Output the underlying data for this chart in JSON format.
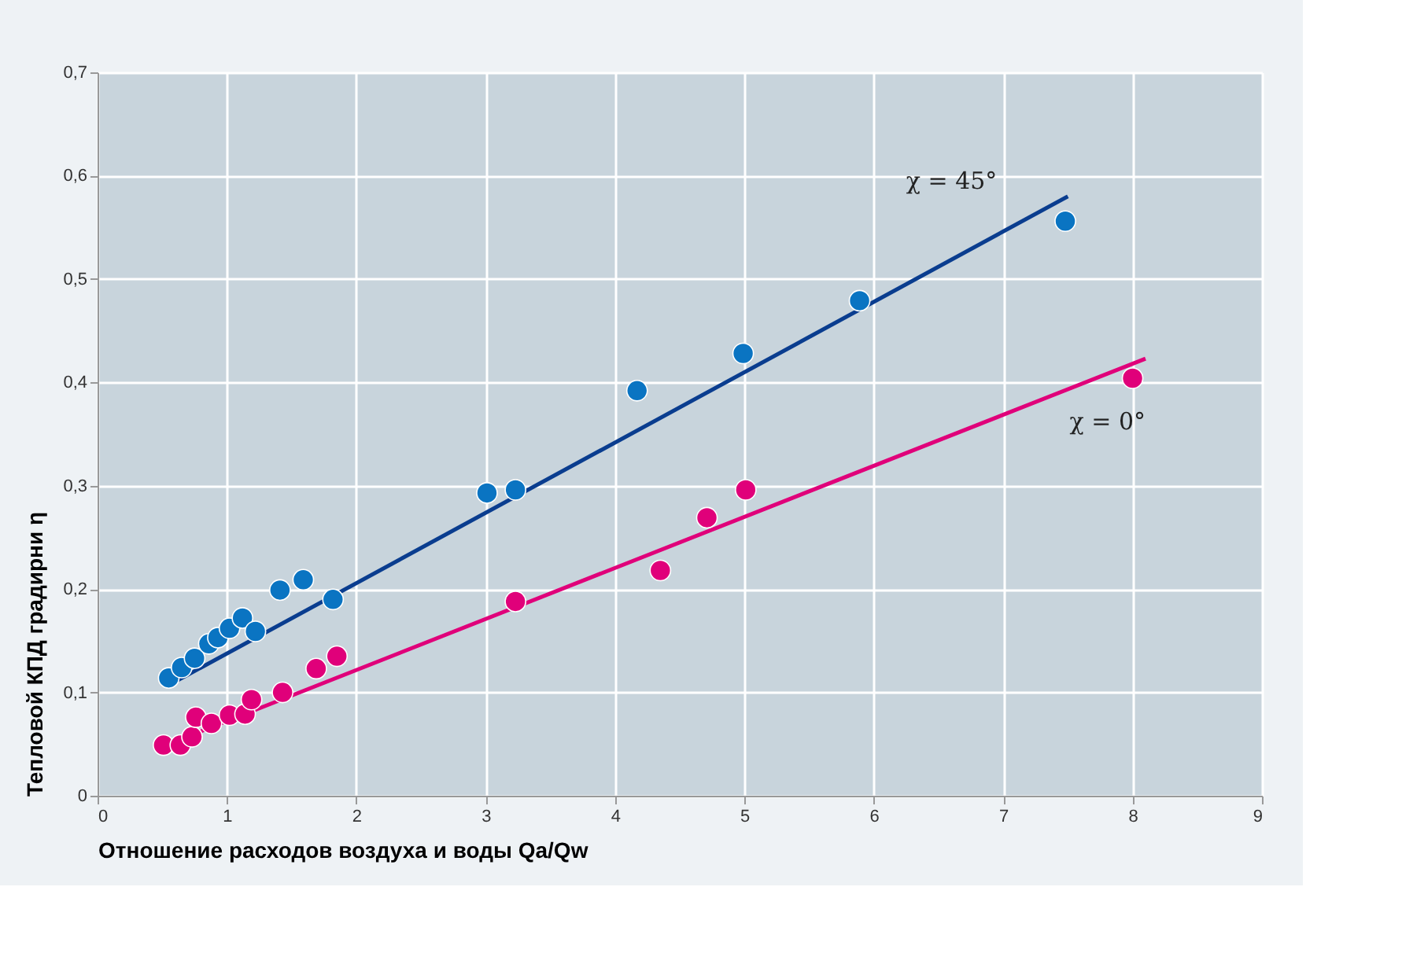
{
  "chart_data": {
    "type": "scatter",
    "xlabel": "Отношение расходов воздуха и воды Qa/Qw",
    "ylabel": "Тепловой КПД градирни η",
    "xlim": [
      0,
      9
    ],
    "xticks": [
      0,
      1,
      2,
      3,
      4,
      5,
      6,
      7,
      8,
      9
    ],
    "ylim": [
      0,
      0.7
    ],
    "yticks": [
      0,
      {
        "value": 0.1,
        "label": "0,1"
      },
      {
        "value": 0.2,
        "label": "0,2"
      },
      {
        "value": 0.3,
        "label": "0,3"
      },
      {
        "value": 0.4,
        "label": "0,4"
      },
      {
        "value": 0.5,
        "label": "0,5"
      },
      {
        "value": 0.6,
        "label": "0,6"
      },
      {
        "value": 0.7,
        "label": "0,7"
      }
    ],
    "grid": true,
    "series": [
      {
        "color": "#0a74c2",
        "marker": "circle",
        "x": [
          0.55,
          0.65,
          0.75,
          0.86,
          0.93,
          1.02,
          1.12,
          1.22,
          1.41,
          1.59,
          1.82,
          3.01,
          3.23,
          4.17,
          4.99,
          5.89,
          7.48
        ],
        "values": [
          0.114,
          0.124,
          0.133,
          0.147,
          0.153,
          0.162,
          0.172,
          0.159,
          0.199,
          0.209,
          0.19,
          0.293,
          0.296,
          0.392,
          0.428,
          0.479,
          0.556
        ]
      },
      {
        "color": "#e0007a",
        "marker": "circle",
        "x": [
          0.51,
          0.64,
          0.73,
          0.76,
          0.88,
          1.02,
          1.14,
          1.19,
          1.43,
          1.69,
          1.85,
          3.23,
          4.35,
          4.71,
          5.01,
          8.0
        ],
        "values": [
          0.049,
          0.049,
          0.057,
          0.076,
          0.07,
          0.078,
          0.079,
          0.093,
          0.1,
          0.123,
          0.135,
          0.188,
          0.218,
          0.269,
          0.296,
          0.404
        ]
      },
      {
        "type": "line",
        "name": "χ = 45°",
        "color": "#0a3d8f",
        "line_style": "solid",
        "marker": "none",
        "x": [
          0.55,
          7.5
        ],
        "values": [
          0.107,
          0.58
        ]
      },
      {
        "type": "line",
        "name": "χ = 0°",
        "color": "#e0007a",
        "line_style": "solid",
        "marker": "none",
        "x": [
          0.55,
          8.1
        ],
        "values": [
          0.05,
          0.423
        ]
      }
    ]
  }
}
